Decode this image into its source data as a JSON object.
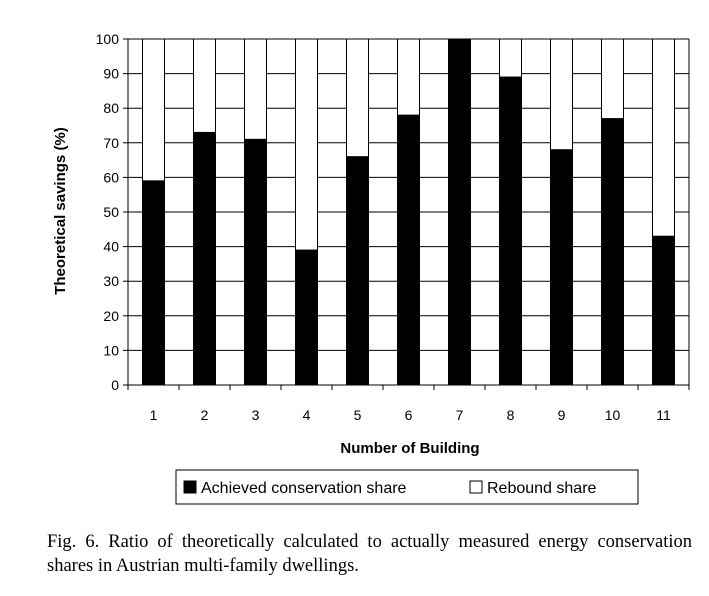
{
  "chart_data": {
    "type": "bar",
    "stacked": true,
    "xlabel": "Number of Building",
    "ylabel": "Theoretical savings (%)",
    "ylim": [
      0,
      100
    ],
    "yticks": [
      0,
      10,
      20,
      30,
      40,
      50,
      60,
      70,
      80,
      90,
      100
    ],
    "grid": "horizontal",
    "legend_position": "bottom",
    "categories": [
      "1",
      "2",
      "3",
      "4",
      "5",
      "6",
      "7",
      "8",
      "9",
      "10",
      "11"
    ],
    "series": [
      {
        "name": "Achieved conservation share",
        "color": "#000000",
        "values": [
          59,
          73,
          71,
          39,
          66,
          78,
          100,
          89,
          68,
          77,
          43
        ]
      },
      {
        "name": "Rebound share",
        "color": "#ffffff",
        "values": [
          41,
          27,
          29,
          61,
          34,
          22,
          0,
          11,
          32,
          23,
          57
        ]
      }
    ]
  },
  "caption": "Fig. 6. Ratio of theoretically calculated to actually measured energy conservation shares in Austrian multi-family dwellings."
}
